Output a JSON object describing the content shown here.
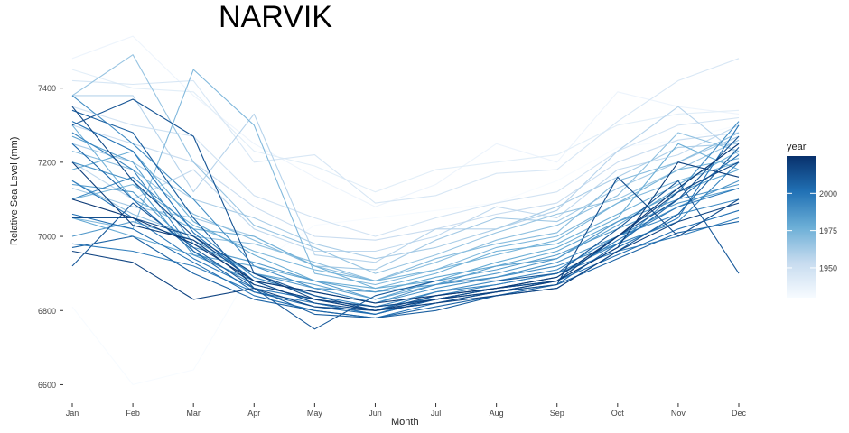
{
  "chart_data": {
    "type": "line",
    "title": "NARVIK",
    "xlabel": "Month",
    "ylabel": "Relative Sea Level (mm)",
    "categories": [
      "Jan",
      "Feb",
      "Mar",
      "Apr",
      "May",
      "Jun",
      "Jul",
      "Aug",
      "Sep",
      "Oct",
      "Nov",
      "Dec"
    ],
    "ylim": [
      6550,
      7550
    ],
    "yticks": [
      6600,
      6800,
      7000,
      7200,
      7400
    ],
    "grid": false,
    "legend": {
      "title": "year",
      "placement": "right",
      "type": "colorbar",
      "ticks": [
        1950,
        1975,
        2000
      ],
      "range": [
        1930,
        2025
      ],
      "colors": [
        "#f7fbff",
        "#c6dbef",
        "#6baed6",
        "#2171b5",
        "#08306b"
      ]
    },
    "approximate_range_by_month": {
      "note": "",
      "min": [
        6810,
        6600,
        6640,
        6790,
        6750,
        6770,
        6800,
        6800,
        6820,
        6880,
        6880,
        6820
      ],
      "max": [
        7480,
        7540,
        7450,
        7330,
        7220,
        7140,
        7180,
        7250,
        7220,
        7390,
        7420,
        7480
      ]
    },
    "series": [
      {
        "year": 1930,
        "values": [
          6810,
          6600,
          6640,
          6920,
          7030,
          7050,
          7070,
          7090,
          7150,
          7240,
          7260,
          7300
        ]
      },
      {
        "year": 1935,
        "values": [
          7480,
          7540,
          7380,
          7250,
          7160,
          7080,
          7140,
          7250,
          7200,
          7390,
          7350,
          7330
        ]
      },
      {
        "year": 1940,
        "values": [
          7450,
          7400,
          7390,
          7230,
          7190,
          7120,
          7180,
          7200,
          7220,
          7300,
          7330,
          7340
        ]
      },
      {
        "year": 1945,
        "values": [
          7420,
          7410,
          7420,
          7200,
          7220,
          7090,
          7110,
          7170,
          7180,
          7310,
          7420,
          7480
        ]
      },
      {
        "year": 1948,
        "values": [
          7350,
          7300,
          7270,
          7110,
          7050,
          7000,
          7050,
          7090,
          7120,
          7230,
          7300,
          7320
        ]
      },
      {
        "year": 1952,
        "values": [
          7300,
          7250,
          7200,
          7080,
          7000,
          6990,
          7020,
          7060,
          7090,
          7200,
          7260,
          7280
        ]
      },
      {
        "year": 1955,
        "values": [
          7200,
          7100,
          7180,
          7020,
          6960,
          6960,
          7000,
          7080,
          7050,
          7180,
          7220,
          7300
        ]
      },
      {
        "year": 1958,
        "values": [
          7380,
          7380,
          7120,
          7330,
          6950,
          6930,
          7020,
          7020,
          7070,
          7230,
          7350,
          7220
        ]
      },
      {
        "year": 1961,
        "values": [
          7250,
          7200,
          7100,
          7050,
          6980,
          6940,
          6970,
          7020,
          7080,
          7160,
          7240,
          7250
        ]
      },
      {
        "year": 1963,
        "values": [
          7130,
          7080,
          7050,
          7000,
          6920,
          6910,
          6990,
          7050,
          7040,
          7130,
          7200,
          7270
        ]
      },
      {
        "year": 1966,
        "values": [
          7380,
          7490,
          7200,
          7030,
          6970,
          6900,
          6950,
          7010,
          7060,
          7100,
          7180,
          7260
        ]
      },
      {
        "year": 1968,
        "values": [
          7150,
          7060,
          7000,
          6980,
          6930,
          6880,
          6930,
          6990,
          7030,
          7110,
          7280,
          7230
        ]
      },
      {
        "year": 1970,
        "values": [
          7230,
          7180,
          7060,
          6990,
          6920,
          6880,
          6940,
          6980,
          7010,
          7150,
          7200,
          7280
        ]
      },
      {
        "year": 1972,
        "values": [
          7050,
          7020,
          7450,
          7300,
          6900,
          6870,
          6910,
          6970,
          7000,
          7090,
          7150,
          7200
        ]
      },
      {
        "year": 1974,
        "values": [
          7100,
          7140,
          7030,
          6960,
          6910,
          6880,
          6910,
          6950,
          6990,
          7090,
          7180,
          7210
        ]
      },
      {
        "year": 1976,
        "values": [
          7300,
          7100,
          7020,
          7000,
          6920,
          6860,
          6900,
          6960,
          6980,
          7060,
          7140,
          7230
        ]
      },
      {
        "year": 1978,
        "values": [
          7180,
          7230,
          7040,
          6950,
          6880,
          6860,
          6880,
          6930,
          6970,
          7050,
          7250,
          7180
        ]
      },
      {
        "year": 1980,
        "values": [
          7050,
          7000,
          6950,
          6920,
          6880,
          6850,
          6890,
          6920,
          6960,
          7040,
          7120,
          7180
        ]
      },
      {
        "year": 1982,
        "values": [
          7270,
          7200,
          6980,
          6900,
          6870,
          6830,
          6870,
          6920,
          6940,
          7030,
          7130,
          7250
        ]
      },
      {
        "year": 1984,
        "values": [
          7140,
          7120,
          6970,
          6930,
          6880,
          6830,
          6880,
          6910,
          6950,
          7020,
          7090,
          7130
        ]
      },
      {
        "year": 1986,
        "values": [
          7000,
          7040,
          6990,
          6900,
          6860,
          6850,
          6870,
          6900,
          6940,
          7040,
          7100,
          7140
        ]
      },
      {
        "year": 1988,
        "values": [
          7200,
          7150,
          6950,
          6880,
          6850,
          6820,
          6860,
          6890,
          6930,
          7000,
          7080,
          7150
        ]
      },
      {
        "year": 1990,
        "values": [
          7380,
          7250,
          7100,
          6920,
          6860,
          6820,
          6870,
          6890,
          6920,
          6980,
          7120,
          7310
        ]
      },
      {
        "year": 1992,
        "values": [
          7100,
          7160,
          7020,
          6890,
          6840,
          6810,
          6850,
          6880,
          6910,
          7000,
          7060,
          7100
        ]
      },
      {
        "year": 1994,
        "values": [
          7280,
          7180,
          6960,
          6870,
          6830,
          6800,
          6850,
          6870,
          6900,
          6980,
          7040,
          7200
        ]
      },
      {
        "year": 1996,
        "values": [
          6980,
          6960,
          6920,
          6850,
          6820,
          6790,
          6840,
          6870,
          6900,
          6960,
          7000,
          7050
        ]
      },
      {
        "year": 1998,
        "values": [
          7150,
          7050,
          6940,
          6860,
          6830,
          6810,
          6830,
          6860,
          6890,
          6990,
          7080,
          7130
        ]
      },
      {
        "year": 2000,
        "values": [
          7310,
          7230,
          7010,
          6880,
          6820,
          6790,
          6830,
          6860,
          6880,
          6970,
          7050,
          7300
        ]
      },
      {
        "year": 2002,
        "values": [
          7060,
          7020,
          6930,
          6840,
          6800,
          6780,
          6820,
          6850,
          6880,
          6950,
          7020,
          7070
        ]
      },
      {
        "year": 2004,
        "values": [
          7250,
          7100,
          6960,
          6850,
          6810,
          6790,
          6830,
          6850,
          6870,
          6980,
          7100,
          7220
        ]
      },
      {
        "year": 2006,
        "values": [
          6970,
          7000,
          6900,
          6830,
          6800,
          6780,
          6810,
          6840,
          6870,
          6940,
          7010,
          7040
        ]
      },
      {
        "year": 2008,
        "values": [
          7340,
          7280,
          7050,
          6860,
          6790,
          6780,
          6800,
          6840,
          6860,
          6960,
          7060,
          7240
        ]
      },
      {
        "year": 2010,
        "values": [
          6920,
          7090,
          6970,
          6860,
          6750,
          6840,
          6880,
          6880,
          6900,
          7020,
          7150,
          6900
        ]
      },
      {
        "year": 2012,
        "values": [
          7300,
          7370,
          7270,
          6900,
          6840,
          6800,
          6840,
          6860,
          6880,
          7000,
          7100,
          7270
        ]
      },
      {
        "year": 2014,
        "values": [
          7050,
          7050,
          7000,
          6880,
          6820,
          6800,
          6820,
          6850,
          6870,
          7160,
          7000,
          7100
        ]
      },
      {
        "year": 2016,
        "values": [
          7350,
          7150,
          7000,
          6900,
          6830,
          6810,
          6830,
          6860,
          6880,
          7000,
          7120,
          7200
        ]
      },
      {
        "year": 2018,
        "values": [
          6960,
          6930,
          6830,
          6860,
          6810,
          6800,
          6820,
          6840,
          6860,
          6960,
          7040,
          7090
        ]
      },
      {
        "year": 2020,
        "values": [
          7200,
          7030,
          6990,
          6870,
          6830,
          6800,
          6830,
          6850,
          6880,
          6970,
          7200,
          7160
        ]
      },
      {
        "year": 2022,
        "values": [
          7100,
          7050,
          6980,
          6880,
          6850,
          6820,
          6840,
          6860,
          6890,
          7000,
          7130,
          7250
        ]
      }
    ]
  }
}
